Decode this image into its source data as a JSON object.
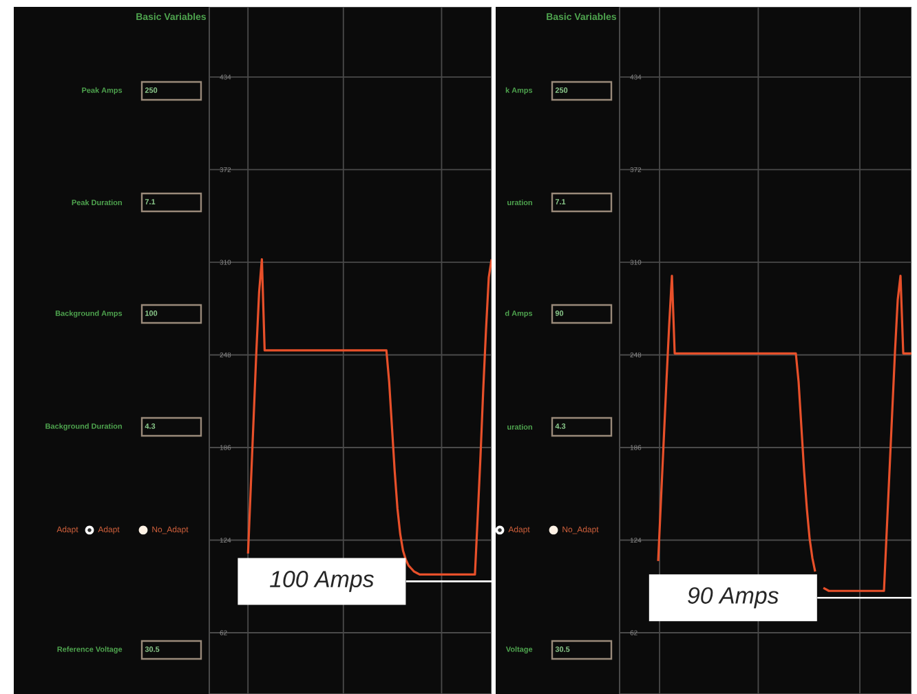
{
  "chart_data": [
    {
      "type": "line",
      "title": "Basic Variables",
      "categories": [
        null,
        null,
        null,
        null,
        null,
        null,
        null,
        null,
        null,
        null,
        null,
        null,
        null,
        null,
        null,
        null,
        null,
        null,
        null,
        null,
        null,
        null,
        null,
        null,
        null,
        null,
        null,
        null,
        null,
        null,
        null,
        null,
        null,
        null,
        null,
        null,
        null,
        null,
        null,
        null,
        null,
        null,
        null,
        null,
        null,
        null,
        null,
        null,
        null,
        null,
        null,
        null,
        null,
        null,
        null,
        null,
        null,
        null,
        null,
        null,
        null,
        null,
        null,
        null,
        null,
        null,
        null,
        null,
        null,
        null,
        null,
        null,
        null,
        null,
        null,
        null,
        null,
        null,
        null,
        null,
        null,
        null,
        null,
        null,
        null,
        null,
        null,
        null,
        null,
        null,
        null,
        null,
        null,
        null,
        null,
        null,
        null,
        null,
        null,
        null,
        null,
        null,
        null
      ],
      "series": [
        {
          "color": "#e8502a",
          "values": [
            null,
            null,
            null,
            null,
            null,
            null,
            null,
            null,
            null,
            null,
            null,
            null,
            null,
            null,
            115,
            160,
            205,
            250,
            290,
            312,
            251,
            251,
            251,
            251,
            251,
            251,
            251,
            251,
            251,
            251,
            251,
            251,
            251,
            251,
            251,
            251,
            251,
            251,
            251,
            251,
            251,
            251,
            251,
            251,
            251,
            251,
            251,
            251,
            251,
            251,
            251,
            251,
            251,
            251,
            251,
            251,
            251,
            251,
            251,
            251,
            251,
            251,
            251,
            251,
            251,
            230,
            200,
            170,
            145,
            128,
            117,
            111,
            107,
            105,
            103,
            102,
            101,
            101,
            101,
            101,
            101,
            101,
            101,
            101,
            101,
            101,
            101,
            101,
            101,
            101,
            101,
            101,
            101,
            101,
            101,
            101,
            101,
            140,
            180,
            225,
            265,
            300,
            312
          ]
        }
      ],
      "ylim": [
        21,
        481
      ],
      "yticks": [
        62,
        124,
        186,
        248,
        310,
        372,
        434
      ],
      "grid": true,
      "annotations": [
        "Peak Amps",
        "250",
        "Peak Duration",
        "7.1",
        "Background Amps",
        "100",
        "Background Duration",
        "4.3",
        "Reference Voltage",
        "30.5",
        "Adapt",
        "Adapt",
        "No_Adapt",
        "100 Amps"
      ]
    },
    {
      "type": "line",
      "title": "Basic Variables",
      "categories": [
        null,
        null,
        null,
        null,
        null,
        null,
        null,
        null,
        null,
        null,
        null,
        null,
        null,
        null,
        null,
        null,
        null,
        null,
        null,
        null,
        null,
        null,
        null,
        null,
        null,
        null,
        null,
        null,
        null,
        null,
        null,
        null,
        null,
        null,
        null,
        null,
        null,
        null,
        null,
        null,
        null,
        null,
        null,
        null,
        null,
        null,
        null,
        null,
        null,
        null,
        null,
        null,
        null,
        null,
        null,
        null,
        null,
        null,
        null,
        null,
        null,
        null,
        null,
        null,
        null,
        null,
        null,
        null,
        null,
        null,
        null,
        null,
        null,
        null,
        null,
        null,
        null,
        null,
        null,
        null,
        null,
        null,
        null,
        null,
        null,
        null,
        null,
        null,
        null,
        null,
        null,
        null,
        null,
        null,
        null,
        null,
        null,
        null,
        null,
        null,
        null,
        null,
        null,
        null,
        null,
        null,
        null
      ],
      "series": [
        {
          "color": "#e8502a",
          "values": [
            null,
            null,
            null,
            null,
            null,
            null,
            null,
            null,
            null,
            null,
            null,
            null,
            null,
            null,
            110,
            150,
            190,
            230,
            268,
            301,
            249,
            249,
            249,
            249,
            249,
            249,
            249,
            249,
            249,
            249,
            249,
            249,
            249,
            249,
            249,
            249,
            249,
            249,
            249,
            249,
            249,
            249,
            249,
            249,
            249,
            249,
            249,
            249,
            249,
            249,
            249,
            249,
            249,
            249,
            249,
            249,
            249,
            249,
            249,
            249,
            249,
            249,
            249,
            249,
            249,
            230,
            200,
            170,
            145,
            125,
            112,
            103,
            null,
            null,
            92,
            91,
            90,
            90,
            90,
            90,
            90,
            90,
            90,
            90,
            90,
            90,
            90,
            90,
            90,
            90,
            90,
            90,
            90,
            90,
            90,
            90,
            90,
            130,
            170,
            210,
            250,
            285,
            301,
            249,
            249,
            249,
            249
          ]
        }
      ],
      "ylim": [
        21,
        481
      ],
      "yticks": [
        62,
        124,
        186,
        248,
        310,
        372,
        434
      ],
      "grid": true,
      "annotations": [
        "k Amps",
        "250",
        "uration",
        "7.1",
        "d Amps",
        "90",
        "uration",
        "4.3",
        "Voltage",
        "30.5",
        "Adapt",
        "No_Adapt",
        "90 Amps"
      ]
    }
  ]
}
